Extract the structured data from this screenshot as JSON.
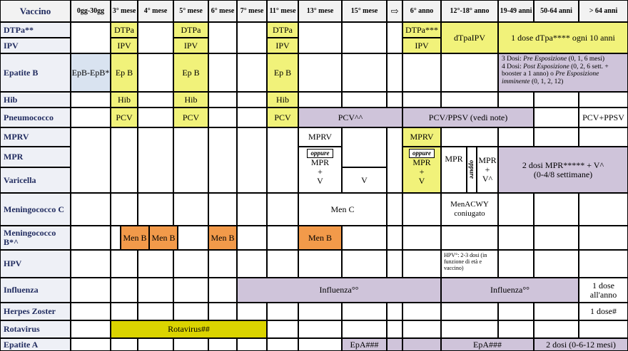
{
  "headers": {
    "vaccino": "Vaccino",
    "cols": [
      "0gg-30gg",
      "3° mese",
      "4° mese",
      "5° mese",
      "6° mese",
      "7° mese",
      "11° mese",
      "13° mese",
      "15° mese",
      "⇨",
      "6° anno",
      "12°-18° anno",
      "19-49 anni",
      "50-64 anni",
      "> 64 anni"
    ]
  },
  "rows": {
    "dtpa": "DTPa**",
    "ipv": "IPV",
    "epb": "Epatite B",
    "hib": "Hib",
    "pneumo": "Pneumococco",
    "mprv": "MPRV",
    "mpr": "MPR",
    "varicella": "Varicella",
    "menc": "Meningococco C",
    "menb": "Meningococco B*^",
    "hpv": "HPV",
    "influenza": "Influenza",
    "herpes": "Herpes Zoster",
    "rota": "Rotavirus",
    "epa": "Epatite A"
  },
  "cells": {
    "dtpa": "DTPa",
    "ipv": "IPV",
    "dtpa6": "DTPa***",
    "dtpaipv": "dTpaIPV",
    "dtpa_adult": "1 dose dTpa**** ogni 10 anni",
    "epbepb": "EpB-EpB*",
    "epb": "Ep B",
    "epb_adult_1": "3 Dosi: ",
    "epb_adult_1i": "Pre Esposizione",
    "epb_adult_2": " (0, 1, 6 mesi)",
    "epb_adult_3": "4 Dosi: ",
    "epb_adult_3i": "Post Esposizione",
    "epb_adult_4": " (0, 2, 6 sett. + booster a 1 anno) o ",
    "epb_adult_4i": "Pre Esposizione imminente",
    "epb_adult_5": " (0, 1, 2, 12)",
    "hib": "Hib",
    "pcv": "PCV",
    "pcv_boost": "PCV^^",
    "pcv_ppsv": "PCV/PPSV (vedi note)",
    "pcv_ppsv_old": "PCV+PPSV",
    "mprv": "MPRV",
    "oppure": "oppure",
    "mpr": "MPR",
    "plus": "+",
    "v": "V",
    "mpr_adol": "MPR",
    "v_caret": "V^",
    "mpr_adult_1": "2 dosi MPR***** + V^",
    "mpr_adult_2": "(0-4/8 settimane)",
    "menc": "Men C",
    "menacwy_1": "MenACWY",
    "menacwy_2": "coniugato",
    "menb": "Men B",
    "hpv": "HPV°: 2-3 dosi (in funzione di età e vaccino)",
    "influenza": "Influenza°°",
    "influenza_old_1": "1 dose",
    "influenza_old_2": "all'anno",
    "herpes": "1 dose#",
    "rota": "Rotavirus##",
    "epa": "EpA###",
    "epa_adult": "2 dosi (0-6-12 mesi)"
  }
}
